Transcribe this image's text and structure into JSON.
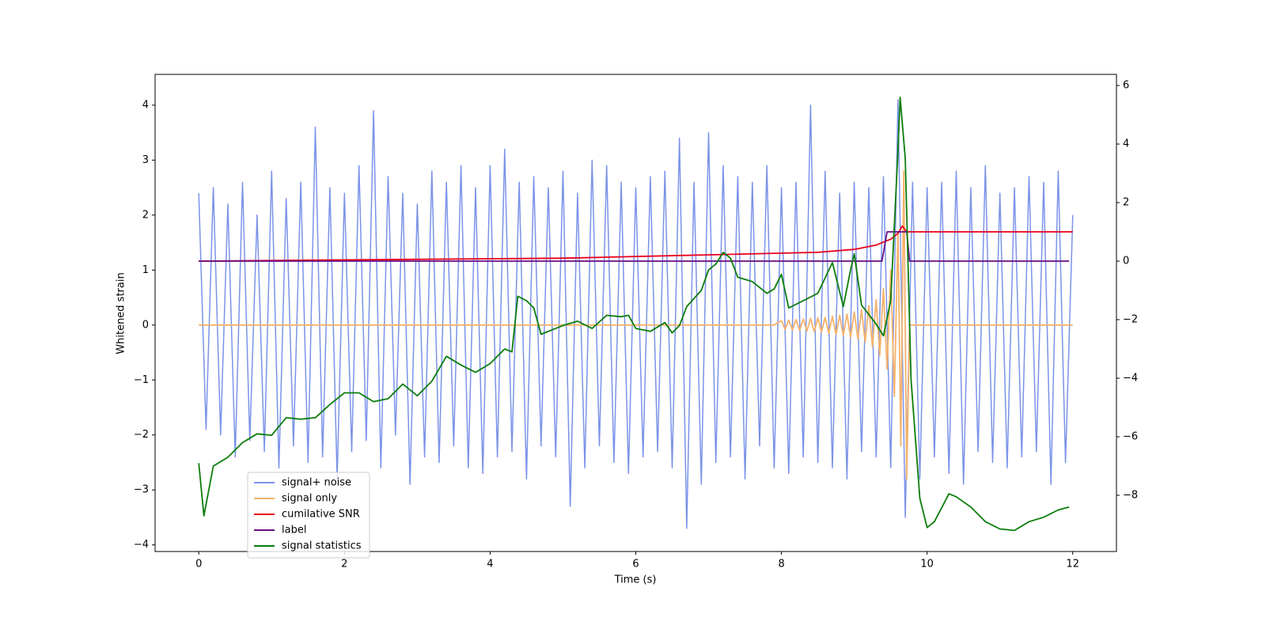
{
  "chart_data": {
    "type": "line",
    "xlabel": "Time (s)",
    "ylabel": "Whitened strain",
    "xlim": [
      -0.6,
      12.6
    ],
    "ylim": [
      -4.12,
      4.56
    ],
    "y2lim": [
      -9.92,
      6.38
    ],
    "xticks": [
      0,
      2,
      4,
      6,
      8,
      10,
      12
    ],
    "yticks": [
      {
        "value": -4,
        "label": "−4"
      },
      {
        "value": -3,
        "label": "−3"
      },
      {
        "value": -2,
        "label": "−2"
      },
      {
        "value": -1,
        "label": "−1"
      },
      0,
      1,
      2,
      3,
      4
    ],
    "y2ticks": [
      {
        "value": -8,
        "label": "−8"
      },
      {
        "value": -6,
        "label": "−6"
      },
      {
        "value": -4,
        "label": "−4"
      },
      {
        "value": -2,
        "label": "−2"
      },
      0,
      2,
      4,
      6
    ],
    "legend": "lower left",
    "series": [
      {
        "name": "signal+ noise",
        "color": "#7b93e8",
        "axis": "y",
        "x": [
          0,
          0.1,
          0.2,
          0.3,
          0.4,
          0.5,
          0.6,
          0.7,
          0.8,
          0.9,
          1,
          1.1,
          1.2,
          1.3,
          1.4,
          1.5,
          1.6,
          1.7,
          1.8,
          1.9,
          2,
          2.1,
          2.2,
          2.3,
          2.4,
          2.5,
          2.6,
          2.7,
          2.8,
          2.9,
          3,
          3.1,
          3.2,
          3.3,
          3.4,
          3.5,
          3.6,
          3.7,
          3.8,
          3.9,
          4,
          4.1,
          4.2,
          4.3,
          4.4,
          4.5,
          4.6,
          4.7,
          4.8,
          4.9,
          5,
          5.1,
          5.2,
          5.3,
          5.4,
          5.5,
          5.6,
          5.7,
          5.8,
          5.9,
          6,
          6.1,
          6.2,
          6.3,
          6.4,
          6.5,
          6.6,
          6.7,
          6.8,
          6.9,
          7,
          7.1,
          7.2,
          7.3,
          7.4,
          7.5,
          7.6,
          7.7,
          7.8,
          7.9,
          8,
          8.1,
          8.2,
          8.3,
          8.4,
          8.5,
          8.6,
          8.7,
          8.8,
          8.9,
          9,
          9.1,
          9.2,
          9.3,
          9.4,
          9.5,
          9.6,
          9.7,
          9.8,
          9.9,
          10,
          10.1,
          10.2,
          10.3,
          10.4,
          10.5,
          10.6,
          10.7,
          10.8,
          10.9,
          11,
          11.1,
          11.2,
          11.3,
          11.4,
          11.5,
          11.6,
          11.7,
          11.8,
          11.9,
          12
        ],
        "values": [
          2.4,
          -1.9,
          2.5,
          -2.0,
          2.2,
          -2.4,
          2.6,
          -2.1,
          2.0,
          -2.3,
          2.8,
          -2.6,
          2.3,
          -2.2,
          2.6,
          -2.5,
          3.6,
          -2.4,
          2.5,
          -2.8,
          2.4,
          -2.3,
          2.9,
          -2.1,
          3.9,
          -2.6,
          2.7,
          -2.0,
          2.4,
          -2.9,
          2.2,
          -2.4,
          2.8,
          -2.5,
          2.6,
          -2.2,
          2.9,
          -2.6,
          2.5,
          -2.7,
          2.9,
          -2.4,
          3.2,
          -2.3,
          2.6,
          -2.8,
          2.7,
          -2.2,
          2.5,
          -2.4,
          2.8,
          -3.3,
          2.4,
          -2.6,
          3.0,
          -2.2,
          2.9,
          -2.5,
          2.6,
          -2.7,
          2.5,
          -2.4,
          2.7,
          -2.3,
          2.8,
          -2.6,
          3.4,
          -3.7,
          2.6,
          -2.9,
          3.5,
          -2.5,
          2.9,
          -2.4,
          2.7,
          -2.8,
          2.6,
          -2.2,
          2.9,
          -2.6,
          2.5,
          -2.7,
          2.6,
          -2.4,
          4.0,
          -2.5,
          2.8,
          -2.6,
          2.4,
          -2.8,
          2.6,
          -2.3,
          2.5,
          -2.4,
          2.7,
          -2.6,
          4.1,
          -3.5,
          2.6,
          -2.8,
          2.5,
          -2.4,
          2.6,
          -2.7,
          2.8,
          -2.9,
          2.5,
          -2.3,
          2.9,
          -2.5,
          2.4,
          -2.6,
          2.5,
          -2.4,
          2.7,
          -2.3,
          2.6,
          -2.9,
          2.8,
          -2.5,
          2.0
        ]
      },
      {
        "name": "signal only",
        "color": "#f5b26b",
        "axis": "y",
        "x": [
          0,
          7.9,
          8.0,
          8.05,
          8.1,
          8.15,
          8.2,
          8.25,
          8.3,
          8.35,
          8.4,
          8.45,
          8.5,
          8.55,
          8.6,
          8.65,
          8.7,
          8.75,
          8.8,
          8.85,
          8.9,
          8.95,
          9.0,
          9.05,
          9.1,
          9.15,
          9.2,
          9.25,
          9.3,
          9.35,
          9.4,
          9.45,
          9.5,
          9.55,
          9.6,
          9.64,
          9.68,
          9.72,
          9.76,
          12
        ],
        "values": [
          0,
          0,
          0.08,
          -0.08,
          0.09,
          -0.09,
          0.1,
          -0.1,
          0.11,
          -0.11,
          0.12,
          -0.12,
          0.13,
          -0.13,
          0.14,
          -0.15,
          0.16,
          -0.17,
          0.18,
          -0.19,
          0.2,
          -0.22,
          0.24,
          -0.26,
          0.28,
          -0.31,
          0.35,
          -0.4,
          0.46,
          -0.55,
          0.66,
          -0.8,
          1.0,
          -1.3,
          1.7,
          -2.2,
          2.8,
          -2.8,
          0,
          0
        ]
      },
      {
        "name": "cumilative SNR",
        "color": "#e8001c",
        "axis": "y2",
        "x": [
          0,
          5,
          8.5,
          9.0,
          9.3,
          9.5,
          9.6,
          9.66,
          9.72,
          9.74,
          12
        ],
        "values": [
          0,
          0.1,
          0.3,
          0.4,
          0.55,
          0.75,
          0.95,
          1.2,
          1.0,
          1.0,
          1.0
        ]
      },
      {
        "name": "label",
        "color": "#6a0d83",
        "axis": "y2",
        "x": [
          0,
          9.38,
          9.45,
          9.72,
          9.76,
          11.95
        ],
        "values": [
          0,
          0,
          1,
          1,
          0,
          0
        ]
      },
      {
        "name": "signal statistics",
        "color": "#0b7d0b",
        "axis": "y2",
        "x": [
          0,
          0.07,
          0.2,
          0.4,
          0.6,
          0.8,
          1.0,
          1.2,
          1.4,
          1.6,
          1.8,
          2.0,
          2.2,
          2.4,
          2.6,
          2.8,
          3.0,
          3.2,
          3.4,
          3.6,
          3.8,
          4.0,
          4.2,
          4.3,
          4.38,
          4.5,
          4.6,
          4.7,
          4.9,
          5.0,
          5.2,
          5.4,
          5.6,
          5.8,
          5.9,
          6.0,
          6.2,
          6.4,
          6.5,
          6.6,
          6.7,
          6.9,
          7.0,
          7.1,
          7.2,
          7.3,
          7.4,
          7.6,
          7.8,
          7.9,
          8.0,
          8.1,
          8.3,
          8.5,
          8.7,
          8.85,
          8.95,
          9.0,
          9.1,
          9.3,
          9.4,
          9.5,
          9.6,
          9.63,
          9.7,
          9.78,
          9.9,
          10.0,
          10.1,
          10.3,
          10.4,
          10.6,
          10.8,
          11.0,
          11.2,
          11.4,
          11.6,
          11.8,
          11.95
        ],
        "values": [
          -6.9,
          -8.7,
          -7.0,
          -6.7,
          -6.2,
          -5.9,
          -5.95,
          -5.35,
          -5.4,
          -5.35,
          -4.9,
          -4.5,
          -4.5,
          -4.8,
          -4.7,
          -4.2,
          -4.6,
          -4.1,
          -3.25,
          -3.55,
          -3.8,
          -3.5,
          -3.0,
          -3.1,
          -1.2,
          -1.35,
          -1.6,
          -2.5,
          -2.3,
          -2.2,
          -2.05,
          -2.3,
          -1.85,
          -1.9,
          -1.85,
          -2.3,
          -2.4,
          -2.1,
          -2.45,
          -2.2,
          -1.55,
          -1.0,
          -0.3,
          -0.1,
          0.3,
          0.1,
          -0.55,
          -0.7,
          -1.1,
          -0.95,
          -0.45,
          -1.6,
          -1.35,
          -1.1,
          -0.05,
          -1.55,
          -0.3,
          0.25,
          -1.5,
          -2.15,
          -2.55,
          -1.35,
          3.8,
          5.6,
          3.5,
          -4.05,
          -8.1,
          -9.1,
          -8.9,
          -7.95,
          -8.05,
          -8.4,
          -8.9,
          -9.15,
          -9.2,
          -8.9,
          -8.75,
          -8.5,
          -8.4
        ]
      }
    ]
  }
}
